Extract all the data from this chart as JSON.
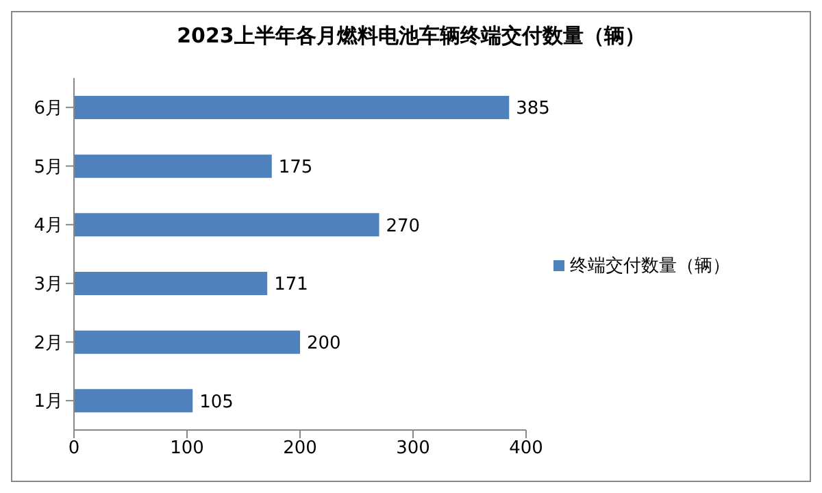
{
  "chart_data": {
    "type": "bar",
    "orientation": "horizontal",
    "title": "2023上半年各月燃料电池车辆终端交付数量（辆）",
    "categories": [
      "6月",
      "5月",
      "4月",
      "3月",
      "2月",
      "1月"
    ],
    "series": [
      {
        "name": "终端交付数量（辆）",
        "color": "#4f81bd",
        "values": [
          385,
          175,
          270,
          171,
          200,
          105
        ]
      }
    ],
    "xlim": [
      0,
      400
    ],
    "xticks": [
      0,
      100,
      200,
      300,
      400
    ],
    "legend": "right",
    "data_labels": true
  }
}
